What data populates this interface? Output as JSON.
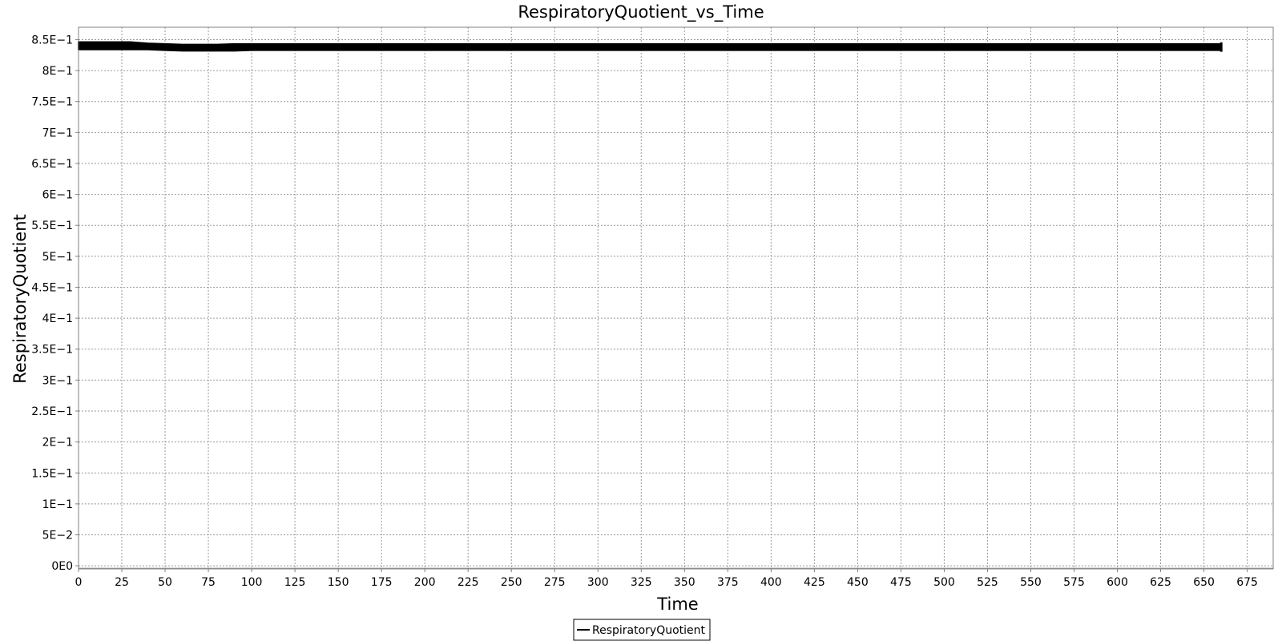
{
  "chart_data": {
    "type": "line",
    "title": "RespiratoryQuotient_vs_Time",
    "xlabel": "Time",
    "ylabel": "RespiratoryQuotient",
    "xlim": [
      0,
      690
    ],
    "ylim": [
      -0.005,
      0.87
    ],
    "x_ticks": [
      0,
      25,
      50,
      75,
      100,
      125,
      150,
      175,
      200,
      225,
      250,
      275,
      300,
      325,
      350,
      375,
      400,
      425,
      450,
      475,
      500,
      525,
      550,
      575,
      600,
      625,
      650,
      675
    ],
    "x_tick_labels": [
      "0",
      "25",
      "50",
      "75",
      "100",
      "125",
      "150",
      "175",
      "200",
      "225",
      "250",
      "275",
      "300",
      "325",
      "350",
      "375",
      "400",
      "425",
      "450",
      "475",
      "500",
      "525",
      "550",
      "575",
      "600",
      "625",
      "650",
      "675"
    ],
    "y_ticks": [
      0,
      0.05,
      0.1,
      0.15,
      0.2,
      0.25,
      0.3,
      0.35,
      0.4,
      0.45,
      0.5,
      0.55,
      0.6,
      0.65,
      0.7,
      0.75,
      0.8,
      0.85
    ],
    "y_tick_labels": [
      "0E0",
      "5E−2",
      "1E−1",
      "1.5E−1",
      "2E−1",
      "2.5E−1",
      "3E−1",
      "3.5E−1",
      "4E−1",
      "4.5E−1",
      "5E−1",
      "5.5E−1",
      "6E−1",
      "6.5E−1",
      "7E−1",
      "7.5E−1",
      "8E−1",
      "8.5E−1"
    ],
    "grid": true,
    "legend_position": "bottom-center",
    "series": [
      {
        "name": "RespiratoryQuotient",
        "color": "#000000",
        "x": [
          0,
          10,
          20,
          30,
          40,
          50,
          60,
          70,
          80,
          90,
          100,
          125,
          150,
          175,
          200,
          225,
          250,
          275,
          300,
          325,
          350,
          375,
          400,
          425,
          450,
          475,
          500,
          525,
          550,
          575,
          600,
          625,
          650,
          660
        ],
        "y_low": [
          0.834,
          0.834,
          0.834,
          0.834,
          0.834,
          0.833,
          0.832,
          0.832,
          0.832,
          0.832,
          0.833,
          0.833,
          0.833,
          0.833,
          0.833,
          0.833,
          0.833,
          0.833,
          0.833,
          0.833,
          0.833,
          0.833,
          0.833,
          0.833,
          0.833,
          0.833,
          0.833,
          0.833,
          0.833,
          0.833,
          0.833,
          0.833,
          0.833,
          0.833
        ],
        "y_high": [
          0.846,
          0.846,
          0.846,
          0.846,
          0.844,
          0.843,
          0.842,
          0.842,
          0.842,
          0.843,
          0.843,
          0.843,
          0.843,
          0.843,
          0.843,
          0.843,
          0.843,
          0.843,
          0.843,
          0.843,
          0.843,
          0.843,
          0.843,
          0.843,
          0.843,
          0.843,
          0.843,
          0.843,
          0.843,
          0.843,
          0.843,
          0.843,
          0.843,
          0.843
        ]
      }
    ]
  }
}
